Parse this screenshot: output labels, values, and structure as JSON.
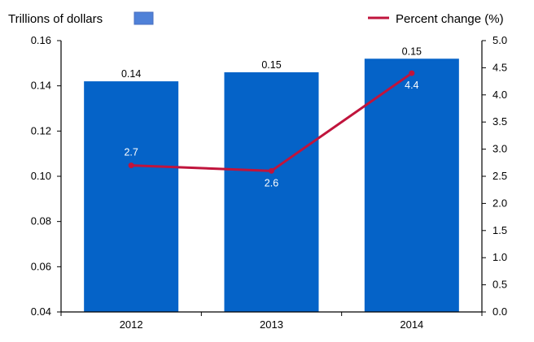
{
  "chart_data": {
    "type": "bar",
    "categories": [
      "2012",
      "2013",
      "2014"
    ],
    "series": [
      {
        "name": "Trillions of dollars",
        "type": "bar",
        "axis": "left",
        "values": [
          0.142,
          0.146,
          0.152
        ],
        "labels": [
          "0.14",
          "0.15",
          "0.15"
        ],
        "color": "#0563c8"
      },
      {
        "name": "Percent change (%)",
        "type": "line",
        "axis": "right",
        "values": [
          2.7,
          2.6,
          4.4
        ],
        "labels": [
          "2.7",
          "2.6",
          "4.4"
        ],
        "color": "#c0143c"
      }
    ],
    "y_left": {
      "range": [
        0.04,
        0.16
      ],
      "ticks": [
        "0.04",
        "0.06",
        "0.08",
        "0.10",
        "0.12",
        "0.14",
        "0.16"
      ]
    },
    "y_right": {
      "range": [
        0,
        5
      ],
      "ticks": [
        "0.0",
        "0.5",
        "1.0",
        "1.5",
        "2.0",
        "2.5",
        "3.0",
        "3.5",
        "4.0",
        "4.5",
        "5.0"
      ]
    },
    "grid": false,
    "legend_placement": "top"
  }
}
